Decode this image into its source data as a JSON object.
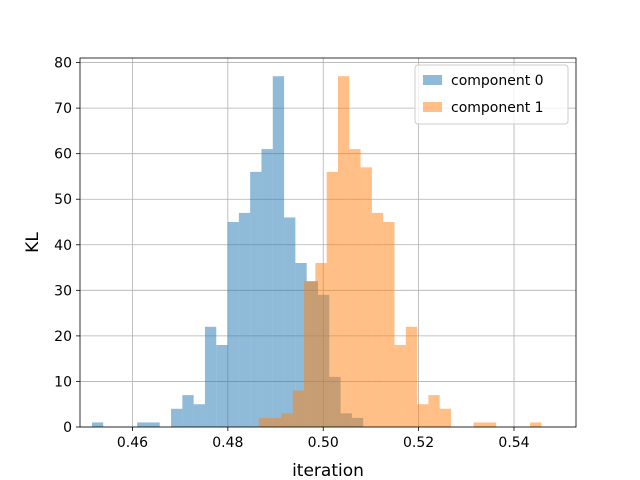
{
  "chart_data": {
    "type": "histogram",
    "xlabel": "iteration",
    "ylabel": "KL",
    "xlim": [
      0.449,
      0.553
    ],
    "ylim": [
      0,
      81
    ],
    "xticks": [
      0.46,
      0.48,
      0.5,
      0.52,
      0.54
    ],
    "xtick_labels": [
      "0.46",
      "0.48",
      "0.50",
      "0.52",
      "0.54"
    ],
    "yticks": [
      0,
      10,
      20,
      30,
      40,
      50,
      60,
      70,
      80
    ],
    "ytick_labels": [
      "0",
      "10",
      "20",
      "30",
      "40",
      "50",
      "60",
      "70",
      "80"
    ],
    "grid": true,
    "legend_position": "upper-right",
    "bin_width": 0.00237,
    "series": [
      {
        "name": "component 0",
        "color": "#1f77b4",
        "alpha": 0.5,
        "bin_start": 0.4515,
        "counts": [
          1,
          0,
          0,
          0,
          1,
          1,
          0,
          4,
          7,
          5,
          22,
          18,
          45,
          47,
          56,
          61,
          77,
          46,
          36,
          32,
          29,
          11,
          3,
          2
        ]
      },
      {
        "name": "component 1",
        "color": "#ff7f0e",
        "alpha": 0.5,
        "bin_start": 0.4865,
        "counts": [
          2,
          2,
          3,
          8,
          32,
          36,
          56,
          77,
          61,
          57,
          47,
          45,
          18,
          22,
          5,
          7,
          4,
          0,
          0,
          1,
          1,
          0,
          0,
          0,
          1
        ]
      }
    ]
  }
}
